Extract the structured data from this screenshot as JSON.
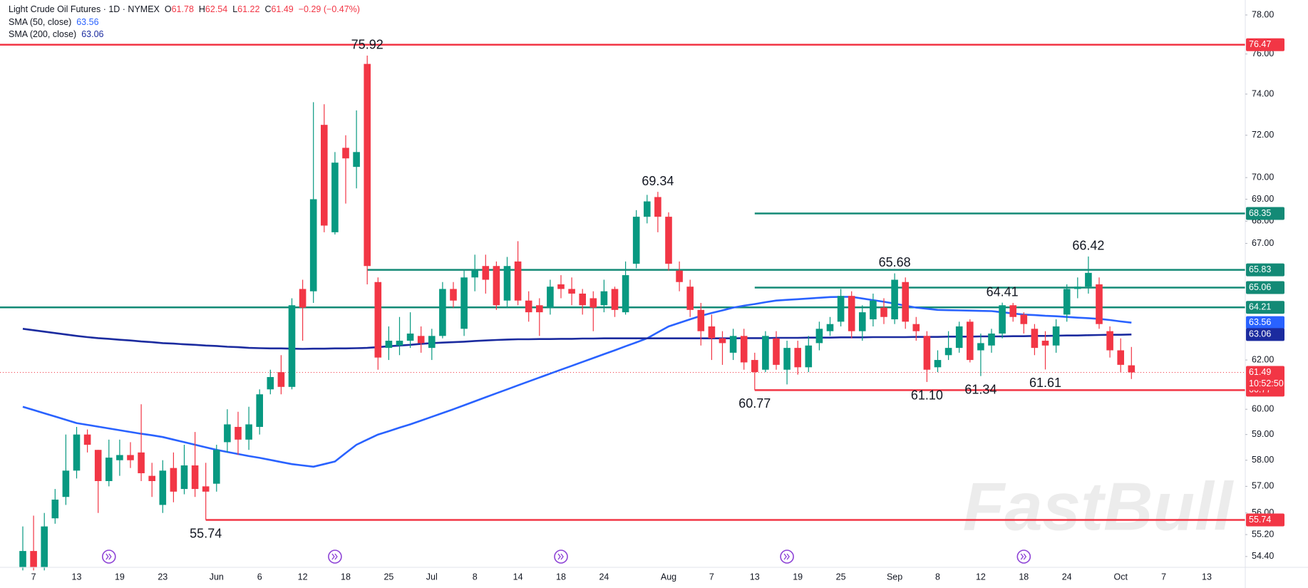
{
  "chart_data": {
    "type": "candlestick",
    "title": "Light Crude Oil Futures · 1D · NYMEX",
    "ohlc_labels": [
      "O",
      "H",
      "L",
      "C"
    ],
    "change": "−0.29 (−0.47%)",
    "countdown": "10:52:50",
    "watermark": "FastBull",
    "up_color": "#089981",
    "down_color": "#f23645",
    "log": true,
    "grid": false,
    "ylim": [
      54.01,
      78.78
    ],
    "yticks": [
      {
        "value": 54.4,
        "label": "54.40"
      },
      {
        "value": 55.2,
        "label": "55.20"
      },
      {
        "value": 56,
        "label": "56.00"
      },
      {
        "value": 57,
        "label": "57.00"
      },
      {
        "value": 58,
        "label": "58.00"
      },
      {
        "value": 59,
        "label": "59.00"
      },
      {
        "value": 60,
        "label": "60.00"
      },
      {
        "value": 62,
        "label": "62.00"
      },
      {
        "value": 67,
        "label": "67.00"
      },
      {
        "value": 68,
        "label": "68.00"
      },
      {
        "value": 69,
        "label": "69.00"
      },
      {
        "value": 70,
        "label": "70.00"
      },
      {
        "value": 72,
        "label": "72.00"
      },
      {
        "value": 74,
        "label": "74.00"
      },
      {
        "value": 76,
        "label": "76.00"
      },
      {
        "value": 78,
        "label": "78.00"
      }
    ],
    "categories": [
      null,
      "7",
      null,
      null,
      null,
      "13",
      null,
      null,
      null,
      "19",
      null,
      null,
      null,
      "23",
      null,
      null,
      null,
      null,
      "Jun",
      null,
      null,
      null,
      "6",
      null,
      null,
      null,
      "12",
      null,
      null,
      null,
      "18",
      null,
      null,
      null,
      "25",
      null,
      null,
      null,
      "Jul",
      null,
      null,
      null,
      "8",
      null,
      null,
      null,
      "14",
      null,
      null,
      null,
      "18",
      null,
      null,
      null,
      "24",
      null,
      null,
      null,
      null,
      null,
      "Aug",
      null,
      null,
      null,
      "7",
      null,
      null,
      null,
      "13",
      null,
      null,
      null,
      "19",
      null,
      null,
      null,
      "25",
      null,
      null,
      null,
      null,
      "Sep",
      null,
      null,
      null,
      "8",
      null,
      null,
      null,
      "12",
      null,
      null,
      null,
      "18",
      null,
      null,
      null,
      "24",
      null,
      null,
      null,
      null,
      "Oct",
      null,
      null,
      null,
      "7",
      null,
      null,
      null,
      "13",
      null,
      null,
      null
    ],
    "ohlc": [
      [
        54.0,
        55.5,
        53.9,
        54.6
      ],
      [
        54.6,
        55.9,
        53.9,
        54.0
      ],
      [
        54.0,
        56.0,
        53.9,
        55.5
      ],
      [
        55.8,
        56.9,
        55.6,
        56.5
      ],
      [
        56.6,
        59.0,
        56.3,
        57.6
      ],
      [
        57.6,
        59.3,
        57.3,
        59.0
      ],
      [
        59.0,
        59.2,
        58.3,
        58.6
      ],
      [
        58.4,
        58.4,
        56.0,
        57.2
      ],
      [
        57.2,
        58.8,
        57.0,
        58.1
      ],
      [
        58.0,
        58.8,
        57.4,
        58.2
      ],
      [
        58.2,
        58.7,
        57.7,
        58.0
      ],
      [
        58.3,
        60.2,
        57.2,
        57.5
      ],
      [
        57.4,
        57.9,
        56.6,
        57.2
      ],
      [
        56.3,
        58.0,
        56.0,
        57.6
      ],
      [
        57.7,
        58.3,
        56.4,
        56.8
      ],
      [
        56.9,
        58.6,
        56.7,
        57.8
      ],
      [
        57.8,
        59.1,
        56.6,
        56.9
      ],
      [
        57.0,
        57.9,
        55.74,
        56.8
      ],
      [
        57.1,
        58.6,
        56.8,
        58.4
      ],
      [
        58.7,
        60.0,
        58.3,
        59.4
      ],
      [
        59.3,
        59.9,
        58.2,
        58.8
      ],
      [
        58.8,
        60.1,
        58.4,
        59.4
      ],
      [
        59.3,
        60.8,
        59.0,
        60.6
      ],
      [
        60.8,
        61.6,
        60.6,
        61.3
      ],
      [
        61.5,
        62.2,
        60.6,
        60.9
      ],
      [
        60.9,
        64.6,
        60.8,
        64.3
      ],
      [
        65.0,
        65.4,
        62.8,
        64.2
      ],
      [
        64.9,
        73.6,
        64.4,
        69.0
      ],
      [
        72.5,
        73.5,
        67.5,
        67.8
      ],
      [
        67.5,
        71.2,
        67.4,
        70.7
      ],
      [
        71.4,
        72.0,
        68.8,
        70.9
      ],
      [
        70.5,
        73.2,
        69.5,
        71.2
      ],
      [
        75.5,
        75.92,
        65.2,
        66.0
      ],
      [
        65.3,
        65.5,
        61.6,
        62.1
      ],
      [
        62.5,
        63.4,
        62.0,
        62.8
      ],
      [
        62.6,
        63.8,
        62.2,
        62.8
      ],
      [
        62.8,
        64.0,
        62.5,
        63.1
      ],
      [
        63.0,
        63.4,
        62.3,
        62.7
      ],
      [
        62.5,
        63.3,
        62.0,
        63.0
      ],
      [
        63.0,
        65.3,
        62.9,
        65.0
      ],
      [
        65.0,
        65.3,
        64.2,
        64.5
      ],
      [
        63.3,
        65.8,
        63.0,
        65.5
      ],
      [
        65.5,
        66.5,
        64.9,
        65.8
      ],
      [
        66.0,
        66.5,
        64.8,
        65.4
      ],
      [
        66.0,
        66.2,
        64.1,
        64.3
      ],
      [
        64.5,
        66.4,
        64.2,
        66.0
      ],
      [
        66.2,
        67.1,
        64.3,
        64.5
      ],
      [
        64.5,
        64.9,
        63.6,
        64.0
      ],
      [
        64.3,
        64.6,
        63.0,
        64.0
      ],
      [
        64.2,
        65.4,
        63.9,
        65.1
      ],
      [
        65.2,
        65.6,
        64.6,
        65.0
      ],
      [
        65.0,
        65.5,
        64.3,
        64.8
      ],
      [
        64.8,
        65.0,
        63.9,
        64.3
      ],
      [
        64.6,
        64.9,
        63.2,
        64.2
      ],
      [
        64.3,
        65.4,
        64.0,
        64.9
      ],
      [
        65.0,
        65.1,
        63.8,
        64.1
      ],
      [
        64.0,
        66.2,
        63.9,
        65.6
      ],
      [
        66.1,
        68.5,
        65.9,
        68.2
      ],
      [
        68.2,
        69.2,
        67.9,
        68.9
      ],
      [
        69.1,
        69.34,
        67.5,
        68.2
      ],
      [
        68.2,
        68.4,
        65.8,
        66.1
      ],
      [
        65.8,
        66.2,
        64.9,
        65.3
      ],
      [
        65.1,
        65.4,
        63.8,
        64.1
      ],
      [
        64.1,
        64.4,
        62.6,
        63.2
      ],
      [
        63.4,
        63.9,
        62.0,
        62.9
      ],
      [
        62.9,
        63.2,
        61.8,
        62.7
      ],
      [
        62.3,
        63.3,
        62.0,
        63.0
      ],
      [
        63.0,
        63.3,
        61.6,
        61.9
      ],
      [
        62.0,
        62.3,
        60.77,
        61.5
      ],
      [
        61.6,
        63.2,
        61.5,
        63.0
      ],
      [
        62.9,
        63.2,
        61.6,
        61.8
      ],
      [
        61.6,
        62.8,
        61.0,
        62.5
      ],
      [
        62.5,
        62.8,
        61.4,
        61.7
      ],
      [
        61.7,
        63.0,
        61.5,
        62.6
      ],
      [
        62.7,
        63.6,
        62.4,
        63.3
      ],
      [
        63.2,
        63.8,
        63.0,
        63.5
      ],
      [
        63.6,
        65.0,
        63.4,
        64.7
      ],
      [
        64.7,
        64.9,
        62.9,
        63.2
      ],
      [
        63.2,
        64.3,
        62.8,
        64.0
      ],
      [
        63.7,
        64.8,
        63.4,
        64.5
      ],
      [
        64.2,
        64.6,
        63.5,
        63.8
      ],
      [
        63.7,
        65.68,
        63.5,
        65.4
      ],
      [
        65.3,
        65.5,
        63.3,
        63.6
      ],
      [
        63.5,
        63.8,
        62.8,
        63.2
      ],
      [
        63.0,
        63.2,
        61.1,
        61.6
      ],
      [
        61.7,
        62.4,
        61.5,
        62.0
      ],
      [
        62.2,
        63.2,
        62.0,
        62.5
      ],
      [
        62.5,
        63.6,
        62.3,
        63.4
      ],
      [
        63.6,
        63.7,
        61.9,
        62.0
      ],
      [
        62.4,
        63.1,
        61.34,
        62.7
      ],
      [
        62.6,
        63.3,
        62.3,
        63.1
      ],
      [
        63.1,
        64.41,
        62.9,
        64.3
      ],
      [
        64.3,
        64.4,
        63.6,
        63.8
      ],
      [
        63.9,
        64.0,
        63.1,
        63.5
      ],
      [
        63.3,
        63.5,
        62.2,
        62.5
      ],
      [
        62.8,
        63.2,
        61.61,
        62.6
      ],
      [
        62.6,
        63.7,
        62.3,
        63.4
      ],
      [
        63.9,
        65.2,
        63.6,
        65.0
      ],
      [
        65.0,
        65.5,
        64.6,
        65.1
      ],
      [
        65.1,
        66.42,
        64.8,
        65.7
      ],
      [
        65.2,
        65.5,
        63.3,
        63.5
      ],
      [
        63.2,
        63.4,
        62.1,
        62.4
      ],
      [
        62.4,
        62.9,
        61.5,
        61.8
      ],
      [
        61.78,
        62.54,
        61.22,
        61.49
      ],
      null,
      null,
      null,
      null,
      null,
      null,
      null,
      null,
      null,
      null
    ],
    "series": [
      {
        "name": "SMA (50, close)",
        "color": "#2962ff",
        "values": [
          60.1,
          59.97,
          59.84,
          59.71,
          59.58,
          59.45,
          59.38,
          59.31,
          59.24,
          59.17,
          59.1,
          59.03,
          58.97,
          58.9,
          58.8,
          58.7,
          58.6,
          58.5,
          58.4,
          58.32,
          58.24,
          58.16,
          58.09,
          58.01,
          57.93,
          57.85,
          57.8,
          57.75,
          57.85,
          57.95,
          58.28,
          58.6,
          58.8,
          59.0,
          59.13,
          59.27,
          59.4,
          59.55,
          59.7,
          59.85,
          60.0,
          60.16,
          60.32,
          60.48,
          60.64,
          60.8,
          60.96,
          61.12,
          61.28,
          61.44,
          61.6,
          61.76,
          61.92,
          62.08,
          62.24,
          62.4,
          62.57,
          62.73,
          62.9,
          63.15,
          63.4,
          63.55,
          63.7,
          63.85,
          63.97,
          64.08,
          64.2,
          64.28,
          64.35,
          64.43,
          64.5,
          64.53,
          64.56,
          64.59,
          64.62,
          64.65,
          64.66,
          64.66,
          64.59,
          64.52,
          64.45,
          64.37,
          64.28,
          64.2,
          64.15,
          64.1,
          64.09,
          64.08,
          64.07,
          64.06,
          64.05,
          64.0,
          63.95,
          63.9,
          63.88,
          63.85,
          63.83,
          63.8,
          63.77,
          63.75,
          63.72,
          63.67,
          63.61,
          63.56,
          null,
          null,
          null,
          null,
          null,
          null,
          null,
          null,
          null,
          null
        ]
      },
      {
        "name": "SMA (200, close)",
        "color": "#1b2b9f",
        "values": [
          63.3,
          63.24,
          63.18,
          63.12,
          63.06,
          63.0,
          62.95,
          62.91,
          62.88,
          62.84,
          62.81,
          62.77,
          62.74,
          62.7,
          62.68,
          62.65,
          62.63,
          62.6,
          62.58,
          62.55,
          62.53,
          62.5,
          62.49,
          62.48,
          62.48,
          62.47,
          62.46,
          62.47,
          62.47,
          62.48,
          62.48,
          62.49,
          62.5,
          62.53,
          62.57,
          62.6,
          62.63,
          62.67,
          62.7,
          62.72,
          62.74,
          62.76,
          62.79,
          62.81,
          62.83,
          62.85,
          62.86,
          62.86,
          62.87,
          62.87,
          62.88,
          62.88,
          62.89,
          62.89,
          62.9,
          62.9,
          62.9,
          62.9,
          62.9,
          62.9,
          62.9,
          62.9,
          62.9,
          62.9,
          62.9,
          62.9,
          62.9,
          62.91,
          62.91,
          62.91,
          62.92,
          62.92,
          62.92,
          62.93,
          62.93,
          62.93,
          62.94,
          62.94,
          62.94,
          62.95,
          62.95,
          62.95,
          62.95,
          62.96,
          62.96,
          62.96,
          62.97,
          62.97,
          62.97,
          62.98,
          62.98,
          62.98,
          62.99,
          62.99,
          63.0,
          63.0,
          63.01,
          63.02,
          63.02,
          63.03,
          63.04,
          63.05,
          63.05,
          63.06,
          null,
          null,
          null,
          null,
          null,
          null,
          null,
          null,
          null,
          null
        ]
      }
    ],
    "levels": [
      {
        "value": 76.47,
        "color": "#f23645"
      },
      {
        "value": 68.35,
        "color": "#138a76"
      },
      {
        "value": 65.83,
        "color": "#138a76"
      },
      {
        "value": 65.06,
        "color": "#138a76"
      },
      {
        "value": 64.21,
        "color": "#138a76"
      },
      {
        "value": 60.77,
        "color": "#f23645"
      },
      {
        "value": 55.74,
        "color": "#f23645"
      }
    ],
    "annotations": [
      75.92,
      69.34,
      65.68,
      66.42,
      64.41,
      60.77,
      {
        "value": 61.1,
        "label": "61.10"
      },
      61.34,
      61.61,
      55.74
    ]
  }
}
